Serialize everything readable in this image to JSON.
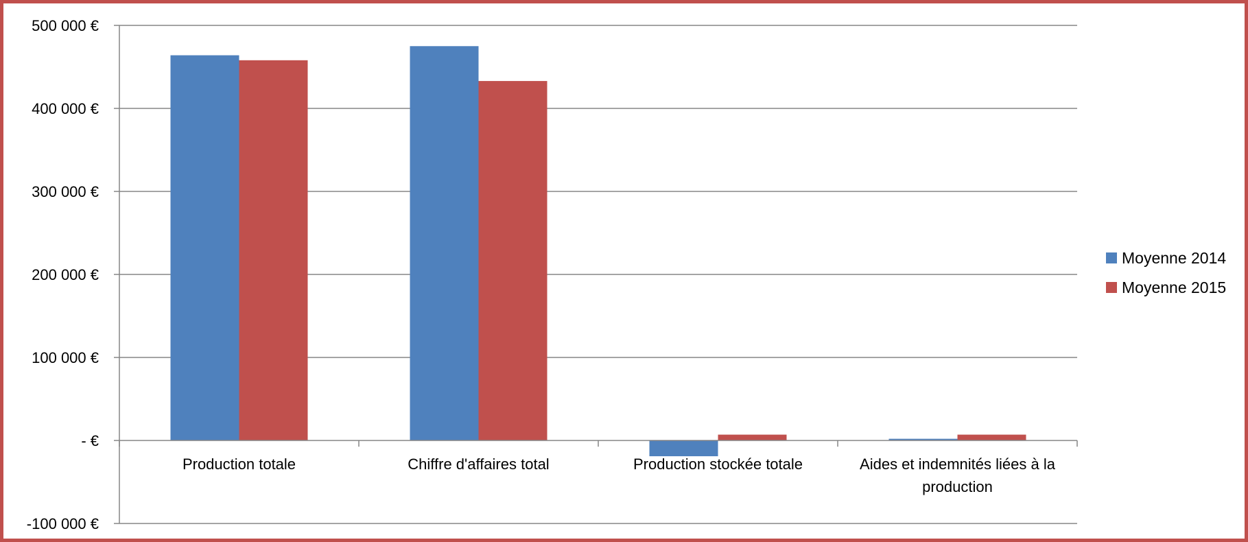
{
  "chart_data": {
    "type": "bar",
    "categories": [
      "Production totale",
      "Chiffre d'affaires total",
      "Production stockée totale",
      "Aides et indemnités liées à la production"
    ],
    "series": [
      {
        "name": "Moyenne 2014",
        "values": [
          464000,
          475000,
          -19000,
          2000
        ],
        "color": "#4f81bd"
      },
      {
        "name": "Moyenne 2015",
        "values": [
          458000,
          433000,
          7000,
          7000
        ],
        "color": "#c0504d"
      }
    ],
    "ylim": [
      -100000,
      500000
    ],
    "yticks": [
      {
        "value": 500000,
        "label": "500 000 €"
      },
      {
        "value": 400000,
        "label": "400 000 €"
      },
      {
        "value": 300000,
        "label": "300 000 €"
      },
      {
        "value": 200000,
        "label": "200 000 €"
      },
      {
        "value": 100000,
        "label": "100 000 €"
      },
      {
        "value": 0,
        "label": "-  €"
      },
      {
        "value": -100000,
        "label": "-100 000 €"
      }
    ],
    "title": "",
    "xlabel": "",
    "ylabel": "",
    "grid": true,
    "legend_position": "right",
    "frame_color": "#c0504d",
    "gridline_color": "#868686"
  }
}
